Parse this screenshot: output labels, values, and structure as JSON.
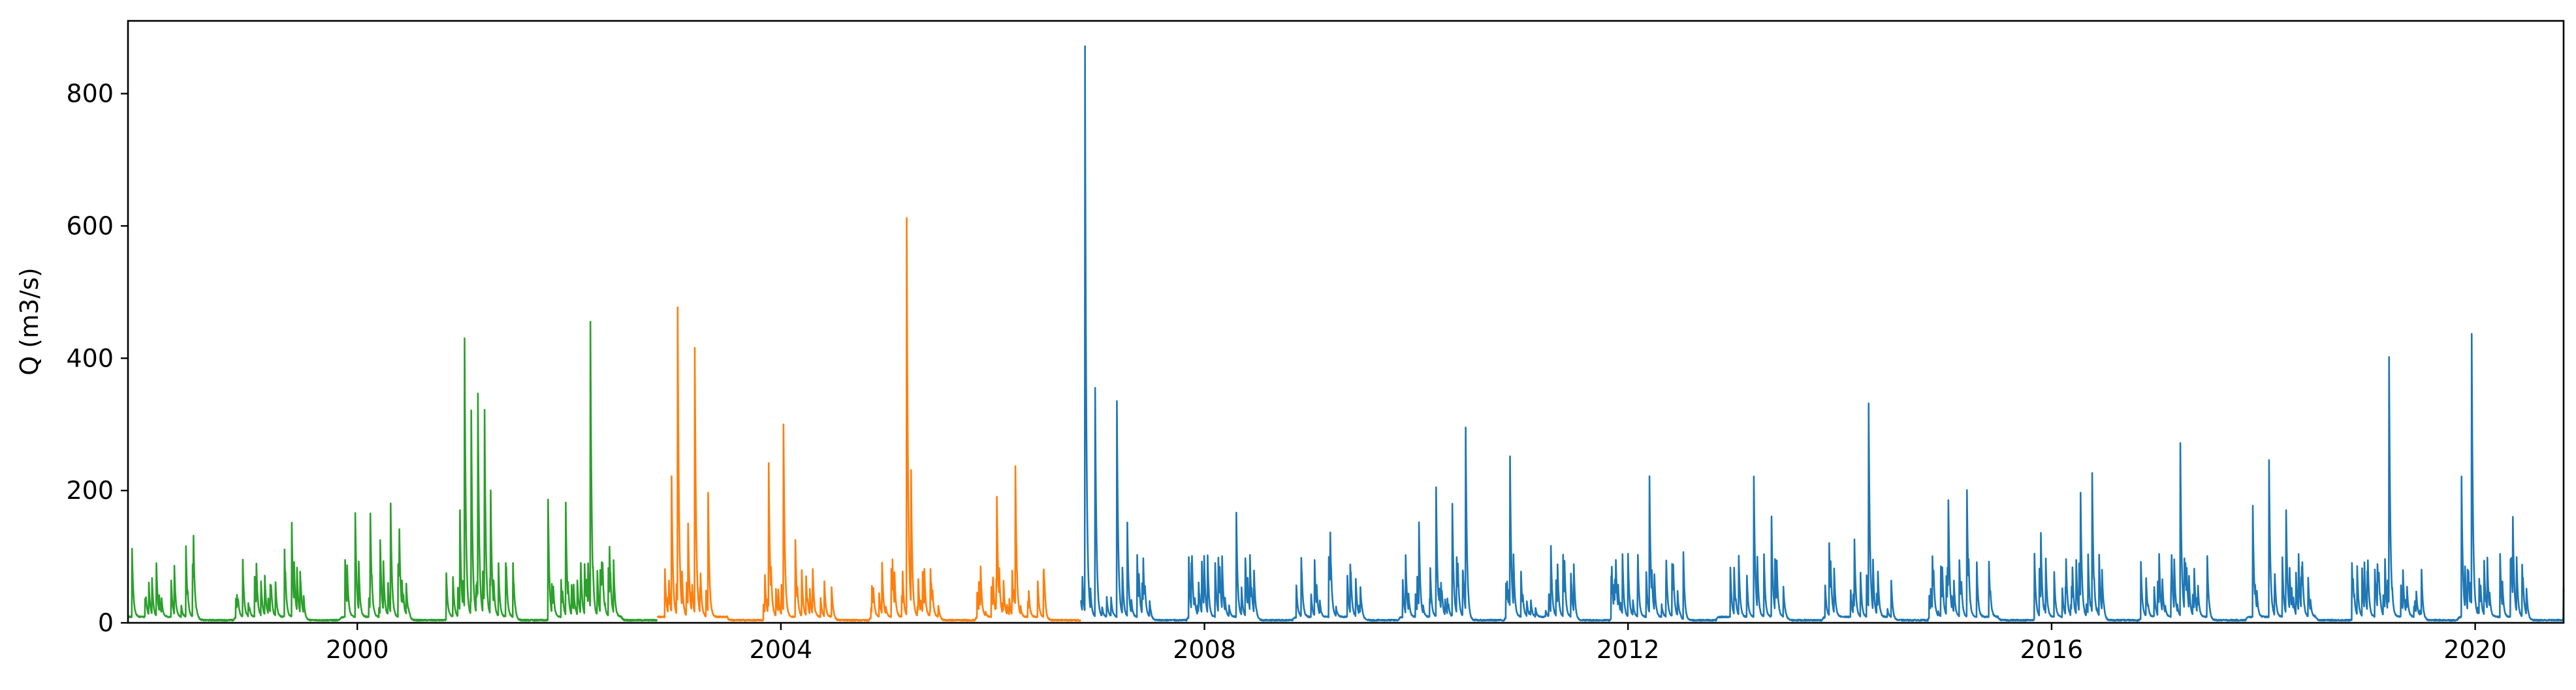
{
  "chart_data": {
    "type": "line",
    "title": "",
    "xlabel": "",
    "ylabel": "Q (m3/s)",
    "xlim": [
      "1997-11-01",
      "2020-11-01"
    ],
    "ylim": [
      0,
      910
    ],
    "grid": false,
    "x_ticks": [
      "2000",
      "2004",
      "2008",
      "2012",
      "2016",
      "2020"
    ],
    "y_ticks": [
      "0",
      "200",
      "400",
      "600",
      "800"
    ],
    "series": [
      {
        "color": "#2ca02c",
        "start": "1997-11-01",
        "end": "2002-10-31",
        "base_peak": 80,
        "peaks": [
          [
            "1997-11-15",
            112
          ],
          [
            "1998-04-10",
            85
          ],
          [
            "1998-05-20",
            115
          ],
          [
            "1998-06-15",
            130
          ],
          [
            "1999-01-15",
            45
          ],
          [
            "1999-03-10",
            55
          ],
          [
            "1999-04-25",
            110
          ],
          [
            "1999-05-20",
            150
          ],
          [
            "1999-06-20",
            60
          ],
          [
            "1999-11-20",
            95
          ],
          [
            "1999-12-25",
            165
          ],
          [
            "2000-02-15",
            165
          ],
          [
            "2000-03-20",
            125
          ],
          [
            "2000-04-25",
            180
          ],
          [
            "2000-05-25",
            140
          ],
          [
            "2000-12-20",
            170
          ],
          [
            "2001-01-05",
            430
          ],
          [
            "2001-01-28",
            320
          ],
          [
            "2001-02-20",
            345
          ],
          [
            "2001-03-15",
            320
          ],
          [
            "2001-04-05",
            200
          ],
          [
            "2001-10-20",
            185
          ],
          [
            "2001-12-20",
            180
          ],
          [
            "2002-02-10",
            90
          ],
          [
            "2002-03-15",
            455
          ],
          [
            "2002-05-20",
            115
          ]
        ]
      },
      {
        "color": "#ff7f0e",
        "start": "2002-11-01",
        "end": "2006-10-31",
        "base_peak": 70,
        "peaks": [
          [
            "2002-12-20",
            220
          ],
          [
            "2003-01-10",
            475
          ],
          [
            "2003-02-15",
            150
          ],
          [
            "2003-03-10",
            415
          ],
          [
            "2003-04-25",
            195
          ],
          [
            "2003-11-20",
            240
          ],
          [
            "2004-01-10",
            300
          ],
          [
            "2004-02-20",
            125
          ],
          [
            "2004-04-20",
            80
          ],
          [
            "2004-12-15",
            90
          ],
          [
            "2005-01-20",
            95
          ],
          [
            "2005-03-10",
            610
          ],
          [
            "2005-03-25",
            230
          ],
          [
            "2005-05-10",
            80
          ],
          [
            "2005-11-20",
            85
          ],
          [
            "2006-01-15",
            190
          ],
          [
            "2006-03-20",
            235
          ]
        ]
      },
      {
        "color": "#1f77b4",
        "start": "2006-11-01",
        "end": "2020-11-01",
        "base_peak": 90,
        "peaks": [
          [
            "2006-11-15",
            870
          ],
          [
            "2006-12-20",
            355
          ],
          [
            "2007-03-05",
            335
          ],
          [
            "2007-04-10",
            150
          ],
          [
            "2008-04-20",
            165
          ],
          [
            "2009-01-15",
            95
          ],
          [
            "2009-03-10",
            135
          ],
          [
            "2009-05-20",
            75
          ],
          [
            "2010-01-10",
            150
          ],
          [
            "2010-03-10",
            205
          ],
          [
            "2010-05-05",
            180
          ],
          [
            "2010-06-20",
            295
          ],
          [
            "2010-11-20",
            250
          ],
          [
            "2011-04-10",
            115
          ],
          [
            "2011-11-20",
            95
          ],
          [
            "2012-03-15",
            220
          ],
          [
            "2012-07-10",
            105
          ],
          [
            "2013-03-10",
            220
          ],
          [
            "2013-05-10",
            160
          ],
          [
            "2013-11-25",
            120
          ],
          [
            "2014-02-20",
            125
          ],
          [
            "2014-04-10",
            330
          ],
          [
            "2015-01-10",
            185
          ],
          [
            "2015-03-15",
            200
          ],
          [
            "2015-11-25",
            135
          ],
          [
            "2016-02-20",
            95
          ],
          [
            "2016-04-10",
            195
          ],
          [
            "2016-05-20",
            225
          ],
          [
            "2017-03-20",
            270
          ],
          [
            "2017-11-25",
            175
          ],
          [
            "2018-01-20",
            245
          ],
          [
            "2018-03-20",
            170
          ],
          [
            "2018-05-15",
            90
          ],
          [
            "2018-11-20",
            85
          ],
          [
            "2019-03-10",
            400
          ],
          [
            "2019-04-20",
            55
          ],
          [
            "2019-11-15",
            220
          ],
          [
            "2019-12-20",
            435
          ],
          [
            "2020-02-20",
            45
          ],
          [
            "2020-05-10",
            160
          ]
        ]
      }
    ]
  }
}
